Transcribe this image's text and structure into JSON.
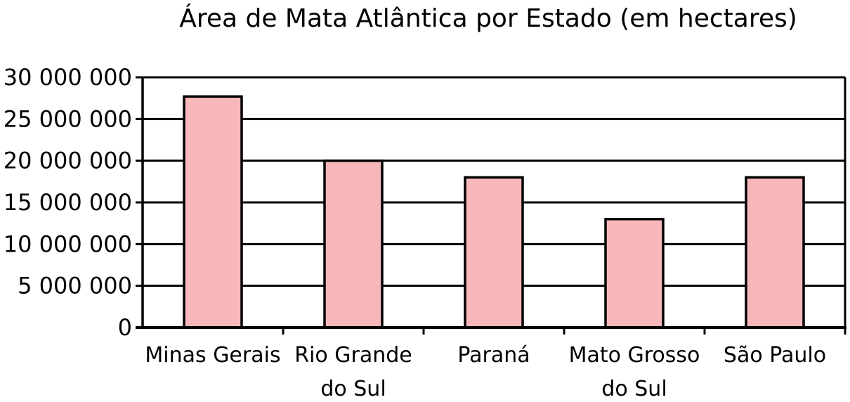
{
  "chart_data": {
    "type": "bar",
    "title": "Área de Mata Atlântica por Estado (em hectares)",
    "xlabel": "",
    "ylabel": "",
    "categories": [
      [
        "Minas Gerais"
      ],
      [
        "Rio Grande",
        "do Sul"
      ],
      [
        "Paraná"
      ],
      [
        "Mato Grosso",
        "do Sul"
      ],
      [
        "São Paulo"
      ]
    ],
    "values": [
      27700000,
      20000000,
      18000000,
      13000000,
      18000000
    ],
    "ylim": [
      0,
      30000000
    ],
    "yticks": [
      0,
      5000000,
      10000000,
      15000000,
      20000000,
      25000000,
      30000000
    ],
    "ytick_labels": [
      "0",
      "5 000 000",
      "10 000 000",
      "15 000 000",
      "20 000 000",
      "25 000 000",
      "30 000 000"
    ],
    "grid": true,
    "bar_color": "#f8b8bb",
    "edge_color": "#000000"
  }
}
